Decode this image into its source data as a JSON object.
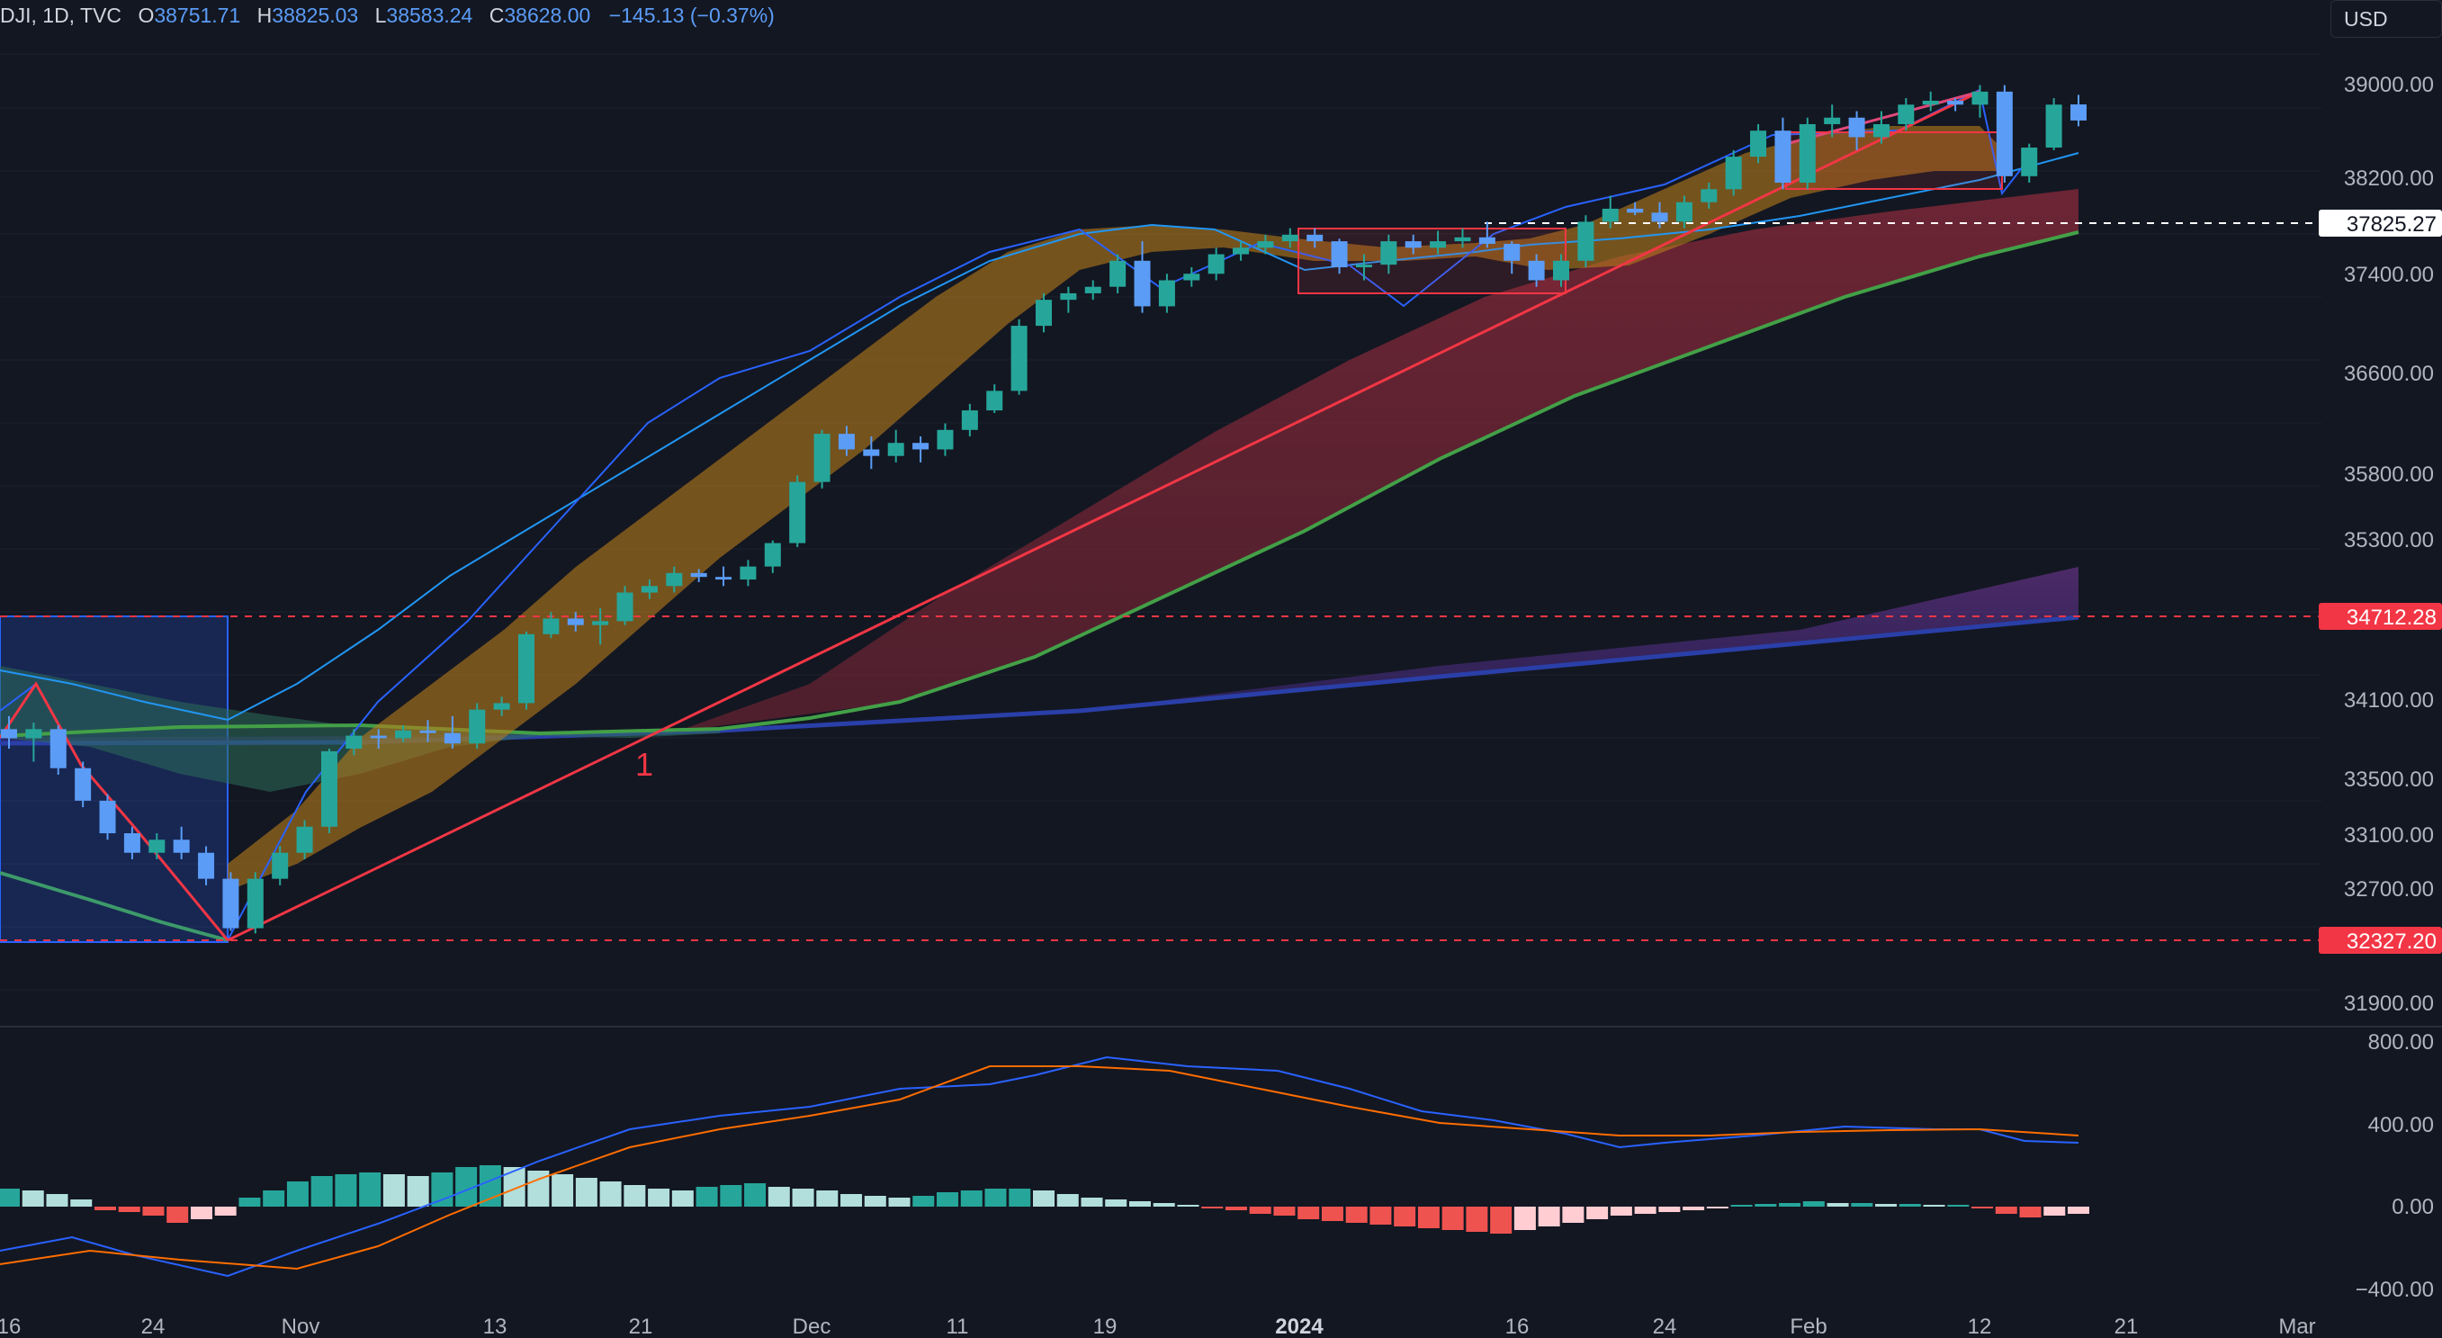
{
  "legend": {
    "symbol": "DJI, 1D, TVC",
    "open_key": "O",
    "open": "38751.71",
    "high_key": "H",
    "high": "38825.03",
    "low_key": "L",
    "low": "38583.24",
    "close_key": "C",
    "close": "38628.00",
    "change": "−145.13 (−0.37%)"
  },
  "currency": "USD",
  "colors": {
    "background": "#131722",
    "up": "#26a69a",
    "down": "#5b9cf6",
    "red": "#f23645",
    "grid": "#1e222d"
  },
  "price_axis": {
    "ticks": [
      "39000.00",
      "38200.00",
      "37400.00",
      "36600.00",
      "35800.00",
      "35300.00",
      "34100.00",
      "33500.00",
      "33100.00",
      "32700.00",
      "31900.00"
    ]
  },
  "price_tags": [
    {
      "label": "37825.27",
      "style": "white"
    },
    {
      "label": "34712.28",
      "style": "red"
    },
    {
      "label": "32327.20",
      "style": "red"
    }
  ],
  "macd_axis": {
    "ticks": [
      "800.00",
      "400.00",
      "0.00",
      "−400.00"
    ]
  },
  "time_axis": {
    "ticks": [
      "16",
      "24",
      "Nov",
      "13",
      "21",
      "Dec",
      "11",
      "19",
      "2024",
      "16",
      "24",
      "Feb",
      "12",
      "21",
      "Mar"
    ],
    "bold": [
      "2024"
    ]
  },
  "annotation": "1",
  "chart_data": {
    "type": "candlestick",
    "symbol": "DJI",
    "interval": "1D",
    "candles_ohlc_approx": [
      [
        33950,
        34050,
        33800,
        33880
      ],
      [
        33880,
        34000,
        33700,
        33950
      ],
      [
        33950,
        33980,
        33600,
        33650
      ],
      [
        33650,
        33700,
        33350,
        33400
      ],
      [
        33400,
        33450,
        33100,
        33150
      ],
      [
        33150,
        33200,
        32950,
        33000
      ],
      [
        33000,
        33150,
        32950,
        33100
      ],
      [
        33100,
        33200,
        32950,
        33000
      ],
      [
        33000,
        33050,
        32750,
        32800
      ],
      [
        32800,
        32850,
        32400,
        32420
      ],
      [
        32420,
        32850,
        32380,
        32800
      ],
      [
        32800,
        33050,
        32750,
        33000
      ],
      [
        33000,
        33250,
        32950,
        33200
      ],
      [
        33200,
        33800,
        33150,
        33780
      ],
      [
        33800,
        33950,
        33750,
        33900
      ],
      [
        33900,
        33950,
        33800,
        33880
      ],
      [
        33880,
        33980,
        33850,
        33940
      ],
      [
        33940,
        34020,
        33850,
        33920
      ],
      [
        33920,
        34050,
        33800,
        33840
      ],
      [
        33840,
        34150,
        33800,
        34100
      ],
      [
        34100,
        34200,
        34050,
        34150
      ],
      [
        34150,
        34700,
        34100,
        34680
      ],
      [
        34680,
        34850,
        34650,
        34800
      ],
      [
        34800,
        34850,
        34700,
        34750
      ],
      [
        34750,
        34880,
        34600,
        34780
      ],
      [
        34780,
        35050,
        34750,
        35000
      ],
      [
        35000,
        35100,
        34950,
        35050
      ],
      [
        35050,
        35200,
        35000,
        35150
      ],
      [
        35150,
        35180,
        35080,
        35120
      ],
      [
        35120,
        35200,
        35050,
        35100
      ],
      [
        35100,
        35250,
        35050,
        35200
      ],
      [
        35200,
        35400,
        35150,
        35380
      ],
      [
        35380,
        35900,
        35350,
        35850
      ],
      [
        35850,
        36250,
        35800,
        36220
      ],
      [
        36220,
        36280,
        36050,
        36100
      ],
      [
        36100,
        36200,
        35950,
        36050
      ],
      [
        36050,
        36250,
        36000,
        36150
      ],
      [
        36150,
        36200,
        36000,
        36100
      ],
      [
        36100,
        36300,
        36050,
        36250
      ],
      [
        36250,
        36450,
        36200,
        36400
      ],
      [
        36400,
        36600,
        36380,
        36550
      ],
      [
        36550,
        37100,
        36520,
        37050
      ],
      [
        37050,
        37300,
        37000,
        37250
      ],
      [
        37250,
        37350,
        37150,
        37300
      ],
      [
        37300,
        37400,
        37250,
        37350
      ],
      [
        37350,
        37600,
        37300,
        37550
      ],
      [
        37550,
        37700,
        37150,
        37200
      ],
      [
        37200,
        37450,
        37150,
        37400
      ],
      [
        37400,
        37500,
        37350,
        37450
      ],
      [
        37450,
        37650,
        37400,
        37600
      ],
      [
        37600,
        37700,
        37550,
        37650
      ],
      [
        37650,
        37750,
        37600,
        37700
      ],
      [
        37700,
        37800,
        37650,
        37750
      ],
      [
        37750,
        37800,
        37650,
        37700
      ],
      [
        37700,
        37720,
        37450,
        37500
      ],
      [
        37500,
        37600,
        37400,
        37520
      ],
      [
        37520,
        37750,
        37450,
        37700
      ],
      [
        37700,
        37750,
        37600,
        37650
      ],
      [
        37650,
        37780,
        37600,
        37700
      ],
      [
        37700,
        37800,
        37650,
        37730
      ],
      [
        37730,
        37850,
        37650,
        37680
      ],
      [
        37680,
        37700,
        37450,
        37550
      ],
      [
        37550,
        37600,
        37350,
        37400
      ],
      [
        37400,
        37600,
        37350,
        37550
      ],
      [
        37550,
        37900,
        37500,
        37850
      ],
      [
        37850,
        38050,
        37800,
        37950
      ],
      [
        37950,
        38000,
        37900,
        37920
      ],
      [
        37920,
        38000,
        37800,
        37850
      ],
      [
        37850,
        38050,
        37800,
        38000
      ],
      [
        38000,
        38150,
        37950,
        38100
      ],
      [
        38100,
        38400,
        38050,
        38350
      ],
      [
        38350,
        38600,
        38300,
        38550
      ],
      [
        38550,
        38650,
        38100,
        38150
      ],
      [
        38150,
        38650,
        38100,
        38600
      ],
      [
        38600,
        38750,
        38500,
        38650
      ],
      [
        38650,
        38700,
        38400,
        38500
      ],
      [
        38500,
        38700,
        38450,
        38600
      ],
      [
        38600,
        38800,
        38550,
        38750
      ],
      [
        38750,
        38850,
        38700,
        38780
      ],
      [
        38780,
        38800,
        38700,
        38750
      ],
      [
        38750,
        38900,
        38650,
        38850
      ],
      [
        38850,
        38900,
        38150,
        38200
      ],
      [
        38200,
        38450,
        38150,
        38420
      ],
      [
        38420,
        38800,
        38400,
        38750
      ],
      [
        38751.71,
        38825.03,
        38583.24,
        38628.0
      ]
    ],
    "studies": [
      "moving-average ribbons",
      "MACD (line, signal, histogram)"
    ],
    "horizontal_levels": [
      37825.27,
      34712.28,
      32327.2
    ]
  }
}
